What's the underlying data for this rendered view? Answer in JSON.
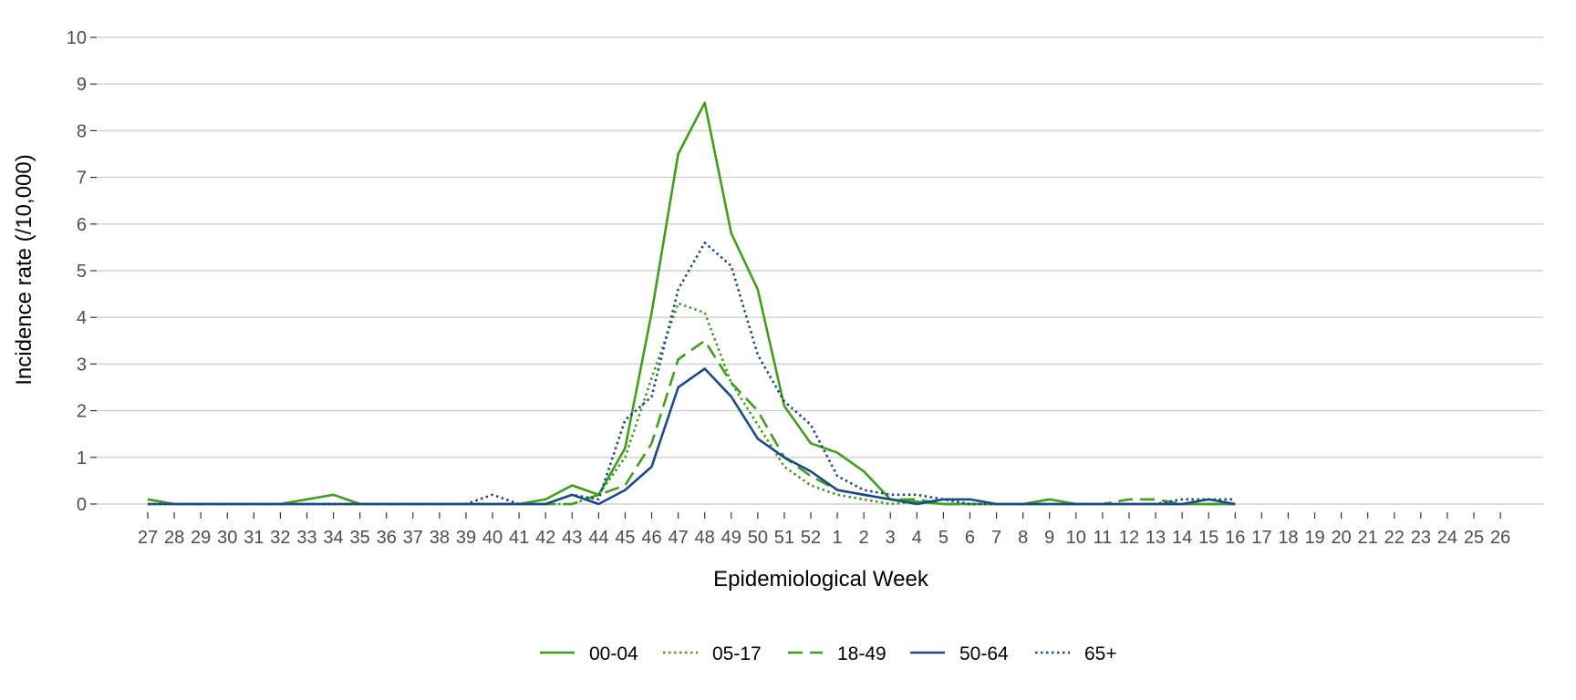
{
  "chart_data": {
    "type": "line",
    "title": "",
    "xlabel": "Epidemiological Week",
    "ylabel": "Incidence rate (/10,000)",
    "ylim": [
      0,
      10
    ],
    "yticks": [
      "0",
      "1",
      "2",
      "3",
      "4",
      "5",
      "6",
      "7",
      "8",
      "9",
      "10"
    ],
    "x": [
      "27",
      "28",
      "29",
      "30",
      "31",
      "32",
      "33",
      "34",
      "35",
      "36",
      "37",
      "38",
      "39",
      "40",
      "41",
      "42",
      "43",
      "44",
      "45",
      "46",
      "47",
      "48",
      "49",
      "50",
      "51",
      "52",
      "1",
      "2",
      "3",
      "4",
      "5",
      "6",
      "7",
      "8",
      "9",
      "10",
      "11",
      "12",
      "13",
      "14",
      "15",
      "16",
      "17",
      "18",
      "19",
      "20",
      "21",
      "22",
      "23",
      "24",
      "25",
      "26"
    ],
    "grid": "horizontal major",
    "legend_position": "bottom",
    "series": [
      {
        "name": "00-04",
        "color": "#3f9e1a",
        "dash": "solid",
        "values": [
          0.1,
          0,
          0,
          0,
          0,
          0,
          0.1,
          0.2,
          0,
          0,
          0,
          0,
          0,
          0,
          0,
          0.1,
          0.4,
          0.2,
          1.2,
          4.1,
          7.5,
          8.6,
          5.8,
          4.6,
          2.1,
          1.3,
          1.1,
          0.7,
          0.1,
          0.05,
          0,
          0,
          0,
          0,
          0.1,
          0,
          0,
          0,
          0,
          0,
          0,
          0,
          null,
          null,
          null,
          null,
          null,
          null,
          null,
          null,
          null,
          null
        ]
      },
      {
        "name": "05-17",
        "color": "#3f9e1a",
        "dash": "dotted",
        "values": [
          0,
          0,
          0,
          0,
          0,
          0,
          0,
          0,
          0,
          0,
          0,
          0,
          0,
          0,
          0,
          0,
          0,
          0.2,
          1.0,
          2.7,
          4.3,
          4.1,
          2.6,
          1.7,
          0.8,
          0.4,
          0.2,
          0.1,
          0,
          0.05,
          0,
          0,
          0,
          0,
          0,
          0,
          0,
          0,
          0,
          0,
          0,
          0,
          null,
          null,
          null,
          null,
          null,
          null,
          null,
          null,
          null,
          null
        ]
      },
      {
        "name": "18-49",
        "color": "#3f9e1a",
        "dash": "dashed",
        "values": [
          0.1,
          0,
          0,
          0,
          0,
          0,
          0,
          0,
          0,
          0,
          0,
          0,
          0,
          0,
          0,
          0,
          0,
          0.2,
          0.4,
          1.3,
          3.1,
          3.5,
          2.6,
          2.0,
          1.0,
          0.6,
          0.3,
          0.2,
          0.1,
          0.1,
          0,
          0,
          0,
          0,
          0,
          0,
          0,
          0.1,
          0.1,
          0,
          0,
          0,
          null,
          null,
          null,
          null,
          null,
          null,
          null,
          null,
          null,
          null
        ]
      },
      {
        "name": "50-64",
        "color": "#1a4a8a",
        "dash": "solid",
        "values": [
          0,
          0,
          0,
          0,
          0,
          0,
          0,
          0,
          0,
          0,
          0,
          0,
          0,
          0,
          0,
          0,
          0.2,
          0,
          0.3,
          0.8,
          2.5,
          2.9,
          2.3,
          1.4,
          1.0,
          0.7,
          0.3,
          0.2,
          0.1,
          0,
          0.1,
          0.1,
          0,
          0,
          0,
          0,
          0,
          0,
          0,
          0,
          0.1,
          0,
          null,
          null,
          null,
          null,
          null,
          null,
          null,
          null,
          null,
          null
        ]
      },
      {
        "name": "65+",
        "color": "#1a4a8a",
        "dash": "dotted",
        "values": [
          0,
          0,
          0,
          0,
          0,
          0,
          0,
          0,
          0,
          0,
          0,
          0,
          0,
          0.2,
          0,
          0,
          0.2,
          0.1,
          1.8,
          2.3,
          4.6,
          5.6,
          5.1,
          3.2,
          2.2,
          1.7,
          0.6,
          0.3,
          0.2,
          0.2,
          0.1,
          0,
          0,
          0,
          0,
          0,
          0,
          0,
          0,
          0.1,
          0.1,
          0.1,
          null,
          null,
          null,
          null,
          null,
          null,
          null,
          null,
          null,
          null
        ]
      }
    ]
  }
}
